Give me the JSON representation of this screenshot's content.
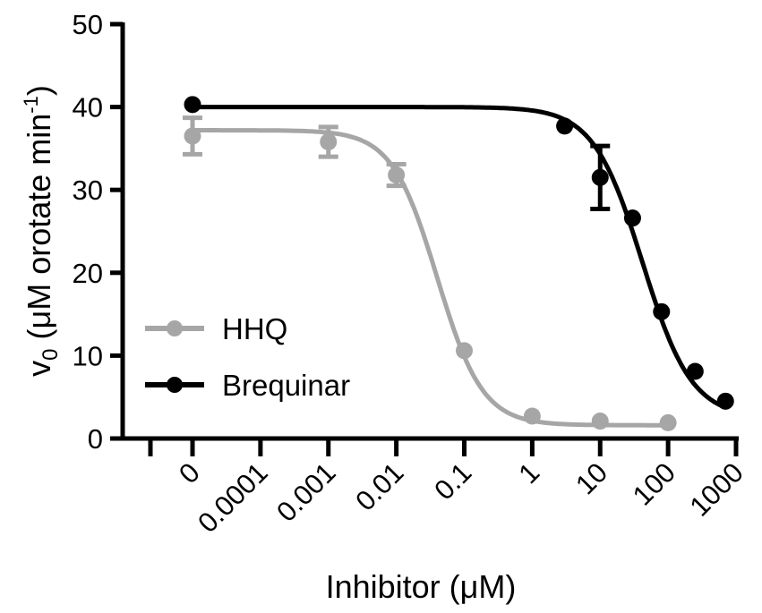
{
  "chart_data": {
    "type": "line",
    "xlabel": "Inhibitor (μM)",
    "ylabel": "v",
    "ylabel_sub": "0",
    "ylabel_rest": " (μM orotate min",
    "ylabel_sup": "-1",
    "ylabel_end": ")",
    "xscale": "log",
    "ylim": [
      0,
      50
    ],
    "yticks": [
      0,
      10,
      20,
      30,
      40,
      50
    ],
    "xticks": [
      {
        "label": "0",
        "value": 1e-05
      },
      {
        "label": "0.0001",
        "value": 0.0001
      },
      {
        "label": "0.001",
        "value": 0.001
      },
      {
        "label": "0.01",
        "value": 0.01
      },
      {
        "label": "0.1",
        "value": 0.1
      },
      {
        "label": "1",
        "value": 1
      },
      {
        "label": "10",
        "value": 10
      },
      {
        "label": "100",
        "value": 100
      },
      {
        "label": "1000",
        "value": 1000
      }
    ],
    "legend_position": "bottom-left",
    "series": [
      {
        "name": "HHQ",
        "color": "#a6a6a6",
        "points": [
          {
            "x": 1e-05,
            "y": 36.5,
            "err": 2.2
          },
          {
            "x": 0.001,
            "y": 35.8,
            "err": 1.8
          },
          {
            "x": 0.01,
            "y": 31.8,
            "err": 1.3
          },
          {
            "x": 0.1,
            "y": 10.6,
            "err": 0
          },
          {
            "x": 1,
            "y": 2.7,
            "err": 0
          },
          {
            "x": 10,
            "y": 2.1,
            "err": 0
          },
          {
            "x": 100,
            "y": 1.9,
            "err": 0
          }
        ],
        "fit": {
          "top": 37.2,
          "bottom": 1.6,
          "ic50": 0.04,
          "hill": 1.3
        }
      },
      {
        "name": "Brequinar",
        "color": "#000000",
        "points": [
          {
            "x": 1e-05,
            "y": 40.3,
            "err": 0
          },
          {
            "x": 3,
            "y": 37.7,
            "err": 0
          },
          {
            "x": 10,
            "y": 31.5,
            "err": 3.8
          },
          {
            "x": 30,
            "y": 26.6,
            "err": 0
          },
          {
            "x": 80,
            "y": 15.3,
            "err": 0
          },
          {
            "x": 250,
            "y": 8.1,
            "err": 0
          },
          {
            "x": 700,
            "y": 4.5,
            "err": 0
          }
        ],
        "fit": {
          "top": 40.0,
          "bottom": 2.5,
          "ic50": 42,
          "hill": 1.2
        }
      }
    ]
  }
}
